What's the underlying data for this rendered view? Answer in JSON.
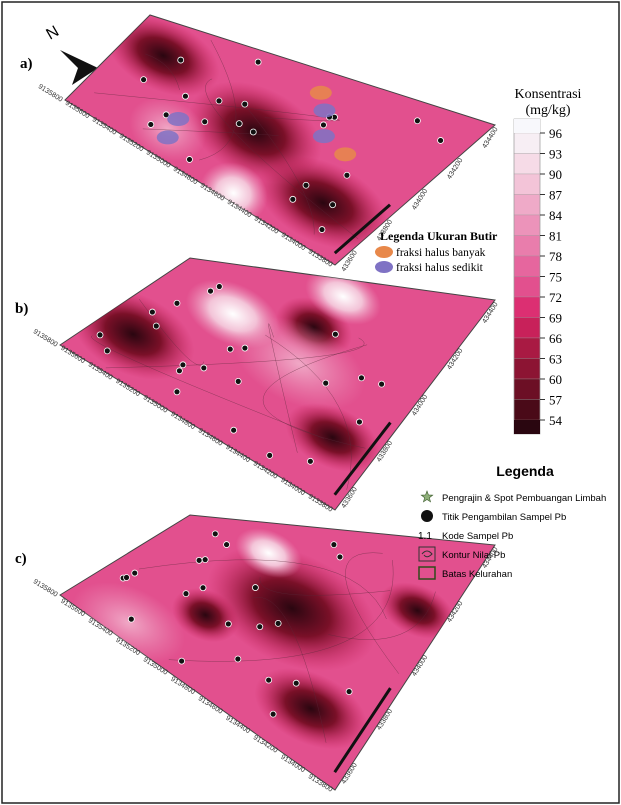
{
  "panels": [
    {
      "label": "a)"
    },
    {
      "label": "b)"
    },
    {
      "label": "c)"
    }
  ],
  "north": "N",
  "northing_labels": [
    "9135800",
    "9135600",
    "9135400",
    "9135200",
    "9135000",
    "9134800",
    "9134600",
    "9134400",
    "9134200",
    "9134000",
    "9133800"
  ],
  "easting_labels": [
    "433600",
    "433800",
    "434000",
    "434200",
    "434400"
  ],
  "colorbar": {
    "title": "Konsentrasi",
    "unit": "(mg/kg)",
    "ticks": [
      96,
      93,
      90,
      87,
      84,
      81,
      78,
      75,
      72,
      69,
      66,
      63,
      60,
      57,
      54
    ],
    "colors": [
      "#f7eef4",
      "#f6dbe7",
      "#f3c4d8",
      "#efaac8",
      "#ec93ba",
      "#e97dac",
      "#e6669e",
      "#e2508e",
      "#dc2f72",
      "#c8215a",
      "#a91a43",
      "#8c1433",
      "#6c0f25",
      "#4a0a18"
    ]
  },
  "grain_legend": {
    "title": "Legenda Ukuran Butir",
    "items": [
      {
        "label": "fraksi halus banyak",
        "color": "#e8884a"
      },
      {
        "label": "fraksi halus sedikit",
        "color": "#7f72c4"
      }
    ]
  },
  "legend": {
    "title": "Legenda",
    "items": [
      {
        "label": "Pengrajin & Spot Pembuangan Limbah"
      },
      {
        "label": "Titik Pengambilan Sampel Pb"
      },
      {
        "symbol": "1.1",
        "label": "Kode Sampel Pb"
      },
      {
        "label": "Kontur Nilai Pb"
      },
      {
        "label": "Batas Kelurahan"
      }
    ]
  }
}
